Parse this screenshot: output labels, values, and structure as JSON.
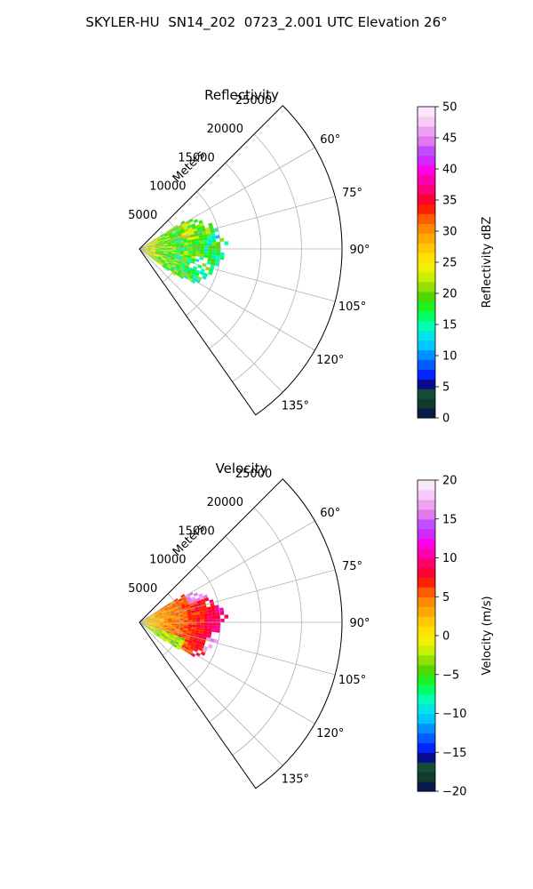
{
  "figure": {
    "suptitle": "SKYLER-HU  SN14_202  0723_2.001 UTC Elevation 26°"
  },
  "chart_data": [
    {
      "type": "heatmap",
      "subtype": "polar-sector-radar-ppi",
      "title": "Reflectivity",
      "radial_label": "Meters",
      "r_ticks": [
        5000,
        10000,
        15000,
        20000,
        25000
      ],
      "r_tick_labels": [
        "5000",
        "10000",
        "15000",
        "20000",
        "25000"
      ],
      "r_max": 25000,
      "theta_range_deg": [
        45,
        145
      ],
      "theta_ticks_deg": [
        60,
        75,
        90,
        105,
        120,
        135
      ],
      "theta_tick_labels": [
        "60°",
        "75°",
        "90°",
        "105°",
        "120°",
        "135°"
      ],
      "grid": true,
      "colorbar": {
        "label": "Reflectivity dBZ",
        "vmin": 0,
        "vmax": 50,
        "ticks": [
          0,
          5,
          10,
          15,
          20,
          25,
          30,
          35,
          40,
          45,
          50
        ],
        "tick_labels": [
          "0",
          "5",
          "10",
          "15",
          "20",
          "25",
          "30",
          "35",
          "40",
          "45",
          "50"
        ],
        "colors": [
          "#0a1a4a",
          "#123a30",
          "#164d3a",
          "#0a0a8a",
          "#0026ff",
          "#005cff",
          "#0090ff",
          "#00c8ff",
          "#00e6e6",
          "#00ffb4",
          "#00ff60",
          "#20f020",
          "#50d800",
          "#90e000",
          "#c8f000",
          "#f0f000",
          "#ffe000",
          "#ffc800",
          "#ffa800",
          "#ff8800",
          "#ff5a00",
          "#ff2000",
          "#ff0033",
          "#ff0070",
          "#ff00b0",
          "#ff00e8",
          "#d028ff",
          "#c050ff",
          "#e078f0",
          "#f0a0f0",
          "#f8c8f8",
          "#fce6fc"
        ]
      },
      "field": {
        "max_range_m": 13500,
        "summary": "echo mostly 12-30 dBZ, highest near radar and north-west lobe"
      }
    },
    {
      "type": "heatmap",
      "subtype": "polar-sector-radar-ppi",
      "title": "Velocity",
      "radial_label": "Meters",
      "r_ticks": [
        5000,
        10000,
        15000,
        20000,
        25000
      ],
      "r_tick_labels": [
        "5000",
        "10000",
        "15000",
        "20000",
        "25000"
      ],
      "r_max": 25000,
      "theta_range_deg": [
        45,
        145
      ],
      "theta_ticks_deg": [
        60,
        75,
        90,
        105,
        120,
        135
      ],
      "theta_tick_labels": [
        "60°",
        "75°",
        "90°",
        "105°",
        "120°",
        "135°"
      ],
      "grid": true,
      "colorbar": {
        "label": "Velocity (m/s)",
        "vmin": -20,
        "vmax": 20,
        "ticks": [
          -20,
          -15,
          -10,
          -5,
          0,
          5,
          10,
          15,
          20
        ],
        "tick_labels": [
          "−20",
          "−15",
          "−10",
          "−5",
          "0",
          "5",
          "10",
          "15",
          "20"
        ],
        "colors": [
          "#0a1a4a",
          "#123a30",
          "#164d3a",
          "#0a0a8a",
          "#0026ff",
          "#005cff",
          "#0090ff",
          "#00c8ff",
          "#00e6e6",
          "#00ffb4",
          "#00ff60",
          "#20f020",
          "#50d800",
          "#90e000",
          "#c8f000",
          "#f0f000",
          "#ffe000",
          "#ffc800",
          "#ffa800",
          "#ff8800",
          "#ff5a00",
          "#ff2000",
          "#ff0033",
          "#ff0070",
          "#ff00b0",
          "#ff00e8",
          "#d028ff",
          "#c050ff",
          "#e078f0",
          "#f0a0f0",
          "#f8c8f8",
          "#fce6fc"
        ]
      },
      "field": {
        "max_range_m": 13500,
        "summary": "yellow (~0 to 5 m/s) near radar grading to red (8-12 m/s) toward outer edge, magenta patches at north and south-east edges"
      }
    }
  ]
}
